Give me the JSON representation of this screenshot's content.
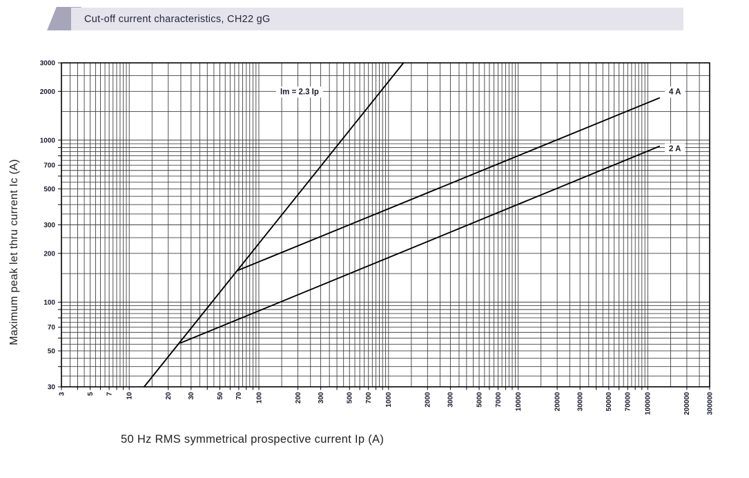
{
  "header": {
    "title": "Cut-off current characteristics, CH22 gG"
  },
  "colors": {
    "header_bar": "#e5e4ec",
    "header_accent": "#a6a5ba",
    "grid": "#404040",
    "border": "#000000",
    "curve": "#000000",
    "tick_text": "#1a1a2e",
    "axis_title_text": "#222222"
  },
  "chart_data": {
    "type": "line",
    "title": "Cut-off current characteristics, CH22 gG",
    "xlabel": "50 Hz RMS symmetrical prospective current Ip (A)",
    "ylabel": "Maximum peak let thru current Ic (A)",
    "x_scale": "log",
    "y_scale": "log",
    "xlim": [
      3,
      300000
    ],
    "ylim": [
      30,
      3000
    ],
    "grid": "on",
    "grid_minor_step_per_decade": 0.5,
    "x_tick_labels": [
      "3",
      "5",
      "7",
      "10",
      "20",
      "30",
      "50",
      "70",
      "100",
      "200",
      "300",
      "500",
      "700",
      "1000",
      "2000",
      "3000",
      "5000",
      "7000",
      "10000",
      "20000",
      "30000",
      "50000",
      "70000",
      "100000",
      "200000",
      "300000"
    ],
    "y_tick_labels": [
      "30",
      "50",
      "70",
      "100",
      "200",
      "300",
      "500",
      "700",
      "1000",
      "2000",
      "3000"
    ],
    "legend_position": "labels-on-chart",
    "series": [
      {
        "name": "Im = 2.3 Ip",
        "label": "Im = 2.3 Ip",
        "points": [
          [
            13.04,
            30
          ],
          [
            1304.3,
            3000
          ]
        ],
        "label_anchor": [
          206,
          2000
        ]
      },
      {
        "name": "4 A",
        "label": "4 A",
        "points": [
          [
            69,
            157
          ],
          [
            122600,
            1820
          ]
        ],
        "label_anchor": [
          162000,
          2000
        ]
      },
      {
        "name": "2 A",
        "label": "2 A",
        "points": [
          [
            25,
            56
          ],
          [
            122600,
            915
          ]
        ],
        "label_anchor": [
          162000,
          890
        ]
      }
    ]
  }
}
